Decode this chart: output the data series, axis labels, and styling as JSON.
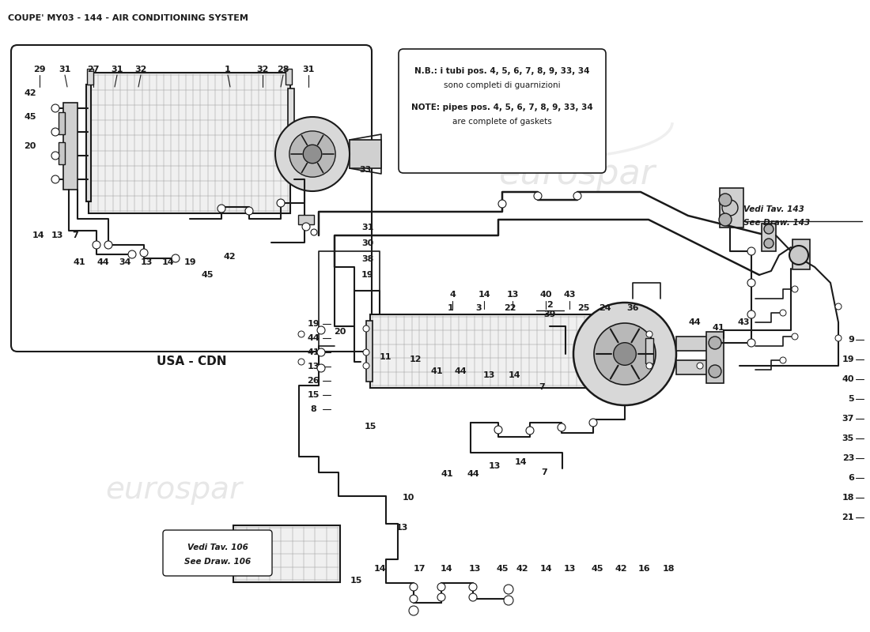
{
  "title": "COUPE' MY03 - 144 - AIR CONDITIONING SYSTEM",
  "bg_color": "#ffffff",
  "lc": "#1a1a1a",
  "note_lines": [
    "N.B.: i tubi pos. 4, 5, 6, 7, 8, 9, 33, 34",
    "sono completi di guarnizioni",
    "",
    "NOTE: pipes pos. 4, 5, 6, 7, 8, 9, 33, 34",
    "are complete of gaskets"
  ],
  "usa_cdn_label": "USA - CDN",
  "vedi_143_lines": [
    "Vedi Tav. 143",
    "See Draw. 143"
  ],
  "vedi_106_lines": [
    "Vedi Tav. 106",
    "See Draw. 106"
  ]
}
